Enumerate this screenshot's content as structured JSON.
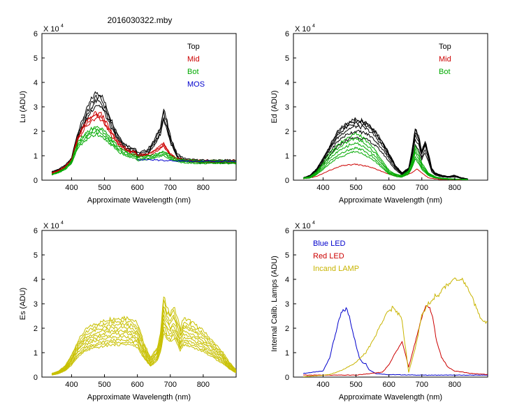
{
  "figure_title": "2016030322.mby",
  "colors": {
    "Top": "#000000",
    "Mid": "#cc0000",
    "Bot": "#00aa00",
    "MOS": "#0000cc",
    "Es": "#c8c000",
    "Blue LED": "#0000cc",
    "Red LED": "#cc0000",
    "Incand LAMP": "#c8b400"
  },
  "chart_data": [
    {
      "id": "lu",
      "type": "line",
      "title": "",
      "xlabel": "Approximate Wavelength (nm)",
      "ylabel": "Lu (ADU)",
      "exponent_label": "X 10",
      "exponent_power": "4",
      "xlim": [
        310,
        900
      ],
      "ylim": [
        0,
        6
      ],
      "xticks": [
        "400",
        "500",
        "600",
        "700",
        "800"
      ],
      "xtick_values": [
        400,
        500,
        600,
        700,
        800
      ],
      "yticks": [
        "0",
        "1",
        "2",
        "3",
        "4",
        "5",
        "6"
      ],
      "ytick_values": [
        0,
        1,
        2,
        3,
        4,
        5,
        6
      ],
      "legend": [
        "Top",
        "Mid",
        "Bot",
        "MOS"
      ],
      "legend_position": "top-right",
      "series": [
        {
          "name": "Top",
          "label": "Top",
          "count": 4,
          "x": [
            340,
            360,
            380,
            400,
            410,
            420,
            440,
            460,
            475,
            490,
            500,
            520,
            540,
            560,
            580,
            595,
            600,
            610,
            630,
            650,
            670,
            680,
            690,
            700,
            720,
            740,
            760,
            800,
            840,
            900
          ],
          "y": [
            0.35,
            0.45,
            0.6,
            0.9,
            1.5,
            2.0,
            2.7,
            3.3,
            3.6,
            3.5,
            3.2,
            2.5,
            1.9,
            1.5,
            1.35,
            1.3,
            1.1,
            1.15,
            1.25,
            1.6,
            2.2,
            2.9,
            2.4,
            1.8,
            1.1,
            0.9,
            0.85,
            0.82,
            0.82,
            0.82
          ],
          "scales": [
            1.0,
            0.95,
            0.9,
            0.86
          ]
        },
        {
          "name": "Mid",
          "label": "Mid",
          "count": 3,
          "x": [
            340,
            360,
            380,
            400,
            410,
            420,
            440,
            460,
            475,
            490,
            500,
            520,
            540,
            560,
            580,
            595,
            600,
            610,
            630,
            650,
            670,
            680,
            690,
            700,
            720,
            740,
            760,
            800,
            840,
            900
          ],
          "y": [
            0.3,
            0.4,
            0.55,
            0.85,
            1.35,
            1.8,
            2.3,
            2.6,
            2.75,
            2.7,
            2.5,
            2.0,
            1.6,
            1.35,
            1.2,
            1.15,
            1.0,
            1.05,
            1.1,
            1.2,
            1.4,
            1.5,
            1.3,
            1.1,
            0.9,
            0.85,
            0.82,
            0.8,
            0.8,
            0.8
          ],
          "scales": [
            1.0,
            0.96,
            0.92
          ]
        },
        {
          "name": "Bot",
          "label": "Bot",
          "count": 4,
          "x": [
            340,
            360,
            380,
            400,
            410,
            420,
            440,
            460,
            475,
            490,
            500,
            520,
            540,
            560,
            580,
            595,
            600,
            610,
            630,
            650,
            670,
            680,
            690,
            700,
            720,
            740,
            760,
            800,
            840,
            900
          ],
          "y": [
            0.25,
            0.35,
            0.5,
            0.8,
            1.2,
            1.55,
            1.9,
            2.1,
            2.2,
            2.15,
            2.0,
            1.7,
            1.4,
            1.2,
            1.1,
            1.05,
            0.95,
            0.95,
            1.0,
            1.05,
            1.15,
            1.2,
            1.1,
            1.0,
            0.88,
            0.84,
            0.82,
            0.8,
            0.8,
            0.8
          ],
          "scales": [
            1.0,
            0.95,
            0.9,
            0.85
          ]
        },
        {
          "name": "MOS",
          "label": "MOS",
          "count": 1,
          "x": [
            600,
            640,
            700,
            760,
            800,
            900
          ],
          "y": [
            0.85,
            0.83,
            0.8,
            0.78,
            0.78,
            0.78
          ],
          "scales": [
            1.0
          ]
        }
      ]
    },
    {
      "id": "ed",
      "type": "line",
      "title": "",
      "xlabel": "Approximate Wavelength (nm)",
      "ylabel": "Ed  (ADU)",
      "exponent_label": "X 10",
      "exponent_power": "4",
      "xlim": [
        310,
        900
      ],
      "ylim": [
        0,
        6
      ],
      "xticks": [
        "400",
        "500",
        "600",
        "700",
        "800"
      ],
      "xtick_values": [
        400,
        500,
        600,
        700,
        800
      ],
      "yticks": [
        "0",
        "1",
        "2",
        "3",
        "4",
        "5",
        "6"
      ],
      "ytick_values": [
        0,
        1,
        2,
        3,
        4,
        5,
        6
      ],
      "legend": [
        "Top",
        "Mid",
        "Bot"
      ],
      "legend_position": "top-right",
      "series": [
        {
          "name": "Top",
          "label": "Top",
          "count": 6,
          "x": [
            340,
            360,
            380,
            400,
            420,
            440,
            460,
            480,
            500,
            520,
            540,
            560,
            580,
            600,
            620,
            640,
            660,
            670,
            680,
            690,
            700,
            710,
            720,
            730,
            740,
            760,
            780,
            800,
            820,
            840
          ],
          "y": [
            0.1,
            0.2,
            0.45,
            0.9,
            1.4,
            1.9,
            2.2,
            2.4,
            2.5,
            2.45,
            2.3,
            2.0,
            1.6,
            1.1,
            0.6,
            0.3,
            0.5,
            1.2,
            2.1,
            1.8,
            1.2,
            1.6,
            1.1,
            0.5,
            0.3,
            0.2,
            0.15,
            0.2,
            0.1,
            0.05
          ],
          "scales": [
            1.0,
            0.97,
            0.93,
            0.88,
            0.8,
            0.7
          ]
        },
        {
          "name": "Mid",
          "label": "Mid",
          "count": 1,
          "x": [
            340,
            380,
            420,
            460,
            500,
            540,
            580,
            610,
            640,
            670,
            685,
            700,
            720,
            740,
            760,
            800,
            840
          ],
          "y": [
            0.05,
            0.15,
            0.4,
            0.6,
            0.65,
            0.55,
            0.35,
            0.2,
            0.15,
            0.3,
            0.45,
            0.3,
            0.1,
            0.05,
            0.03,
            0.02,
            0.02
          ],
          "scales": [
            1.0
          ]
        },
        {
          "name": "Bot",
          "label": "Bot",
          "count": 5,
          "x": [
            340,
            360,
            380,
            400,
            420,
            440,
            460,
            480,
            500,
            520,
            540,
            560,
            580,
            600,
            620,
            640,
            660,
            670,
            680,
            690,
            700,
            710,
            720,
            740,
            760,
            800,
            840
          ],
          "y": [
            0.1,
            0.15,
            0.35,
            0.7,
            1.1,
            1.4,
            1.6,
            1.8,
            1.9,
            1.75,
            1.5,
            1.2,
            0.8,
            0.4,
            0.25,
            0.2,
            0.4,
            0.8,
            1.4,
            1.1,
            0.7,
            0.5,
            0.3,
            0.15,
            0.08,
            0.05,
            0.03
          ],
          "scales": [
            1.0,
            0.9,
            0.8,
            0.7,
            0.62
          ]
        }
      ]
    },
    {
      "id": "es",
      "type": "line",
      "title": "",
      "xlabel": "Approximate Wavelength (nm)",
      "ylabel": "Es  (ADU)",
      "exponent_label": "X 10",
      "exponent_power": "4",
      "xlim": [
        310,
        900
      ],
      "ylim": [
        0,
        6
      ],
      "xticks": [
        "400",
        "500",
        "600",
        "700",
        "800"
      ],
      "xtick_values": [
        400,
        500,
        600,
        700,
        800
      ],
      "yticks": [
        "0",
        "1",
        "2",
        "3",
        "4",
        "5",
        "6"
      ],
      "ytick_values": [
        0,
        1,
        2,
        3,
        4,
        5,
        6
      ],
      "legend": [],
      "legend_position": "none",
      "series": [
        {
          "name": "Es",
          "label": "Es",
          "count": 10,
          "x": [
            340,
            360,
            380,
            400,
            420,
            440,
            460,
            480,
            500,
            520,
            540,
            560,
            580,
            600,
            620,
            640,
            660,
            670,
            680,
            690,
            700,
            710,
            720,
            730,
            740,
            760,
            780,
            800,
            820,
            840,
            860,
            880,
            900
          ],
          "y": [
            0.15,
            0.25,
            0.45,
            0.9,
            1.5,
            1.9,
            2.1,
            2.2,
            2.3,
            2.4,
            2.4,
            2.45,
            2.4,
            2.2,
            1.4,
            0.8,
            1.2,
            1.8,
            3.3,
            2.8,
            2.6,
            2.9,
            2.5,
            2.0,
            2.4,
            2.3,
            2.1,
            1.9,
            1.6,
            1.3,
            1.0,
            0.6,
            0.3
          ],
          "scales": [
            1.0,
            0.94,
            0.88,
            0.83,
            0.78,
            0.73,
            0.68,
            0.63,
            0.59,
            0.55
          ]
        }
      ]
    },
    {
      "id": "calib",
      "type": "line",
      "title": "",
      "xlabel": "Approximate Wavelength (nm)",
      "ylabel": "Internal Calib. Lamps (ADU)",
      "exponent_label": "X 10",
      "exponent_power": "4",
      "xlim": [
        310,
        900
      ],
      "ylim": [
        0,
        6
      ],
      "xticks": [
        "400",
        "500",
        "600",
        "700",
        "800"
      ],
      "xtick_values": [
        400,
        500,
        600,
        700,
        800
      ],
      "yticks": [
        "0",
        "1",
        "2",
        "3",
        "4",
        "5",
        "6"
      ],
      "ytick_values": [
        0,
        1,
        2,
        3,
        4,
        5,
        6
      ],
      "legend": [
        "Blue LED",
        "Red LED",
        "Incand LAMP"
      ],
      "legend_position": "top-left",
      "series": [
        {
          "name": "Blue LED",
          "label": "Blue LED",
          "count": 1,
          "x": [
            340,
            400,
            420,
            440,
            455,
            470,
            480,
            490,
            500,
            510,
            520,
            530,
            540,
            560,
            600,
            700,
            800,
            900
          ],
          "y": [
            0.15,
            0.25,
            0.8,
            1.9,
            2.6,
            2.8,
            2.5,
            1.9,
            1.3,
            0.8,
            0.6,
            0.55,
            0.3,
            0.15,
            0.1,
            0.08,
            0.08,
            0.08
          ],
          "scales": [
            1.0
          ]
        },
        {
          "name": "Red LED",
          "label": "Red LED",
          "count": 1,
          "x": [
            340,
            500,
            580,
            600,
            620,
            640,
            660,
            680,
            700,
            715,
            730,
            745,
            760,
            780,
            800,
            850,
            900
          ],
          "y": [
            0.08,
            0.08,
            0.2,
            0.5,
            1.0,
            1.5,
            0.4,
            1.4,
            2.5,
            3.0,
            2.6,
            1.5,
            0.8,
            0.4,
            0.25,
            0.15,
            0.1
          ],
          "scales": [
            1.0
          ]
        },
        {
          "name": "Incand LAMP",
          "label": "Incand LAMP",
          "count": 1,
          "x": [
            340,
            420,
            460,
            500,
            530,
            560,
            590,
            610,
            630,
            640,
            660,
            680,
            700,
            720,
            740,
            760,
            780,
            800,
            820,
            840,
            860,
            880,
            900
          ],
          "y": [
            0.02,
            0.1,
            0.3,
            0.6,
            1.0,
            1.7,
            2.6,
            2.8,
            2.6,
            2.3,
            0.2,
            1.2,
            2.5,
            3.0,
            3.3,
            3.5,
            3.8,
            4.1,
            4.0,
            3.6,
            3.0,
            2.4,
            2.2
          ],
          "scales": [
            1.0
          ]
        }
      ]
    }
  ]
}
